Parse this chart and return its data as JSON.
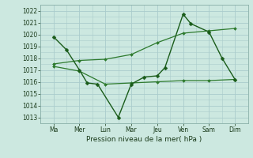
{
  "title": "",
  "xlabel": "Pression niveau de la mer( hPa )",
  "background_color": "#cce8e0",
  "grid_color": "#aacccc",
  "line_color_dark": "#1a5c1a",
  "line_color_med": "#2d7a2d",
  "ylim": [
    1012.5,
    1022.5
  ],
  "yticks": [
    1013,
    1014,
    1015,
    1016,
    1017,
    1018,
    1019,
    1020,
    1021,
    1022
  ],
  "x_labels": [
    "Ma",
    "Mer",
    "Lun",
    "Mar",
    "Jeu",
    "Ven",
    "Sam",
    "Dim"
  ],
  "x_positions": [
    0,
    1,
    2,
    3,
    4,
    5,
    6,
    7
  ],
  "series1_x": [
    0,
    0.5,
    1,
    1.3,
    1.7,
    2.5,
    3,
    3.5,
    4,
    4.3,
    5,
    5.3,
    6,
    6.5,
    7
  ],
  "series1_y": [
    1019.8,
    1018.7,
    1017.0,
    1015.9,
    1015.8,
    1013.0,
    1015.8,
    1016.4,
    1016.5,
    1017.2,
    1021.7,
    1020.9,
    1020.2,
    1018.0,
    1016.2
  ],
  "series2_x": [
    0,
    1,
    2,
    3,
    4,
    5,
    6,
    7
  ],
  "series2_y": [
    1017.3,
    1016.9,
    1015.8,
    1015.9,
    1016.0,
    1016.1,
    1016.1,
    1016.2
  ],
  "series3_x": [
    0,
    1,
    2,
    3,
    4,
    5,
    6,
    7
  ],
  "series3_y": [
    1017.5,
    1017.8,
    1017.9,
    1018.3,
    1019.3,
    1020.1,
    1020.3,
    1020.5
  ],
  "marker_size_main": 2.5,
  "marker_size_smooth": 2.0,
  "linewidth_main": 1.0,
  "linewidth_smooth": 0.9,
  "tick_labelsize": 5.5,
  "xlabel_fontsize": 6.5
}
